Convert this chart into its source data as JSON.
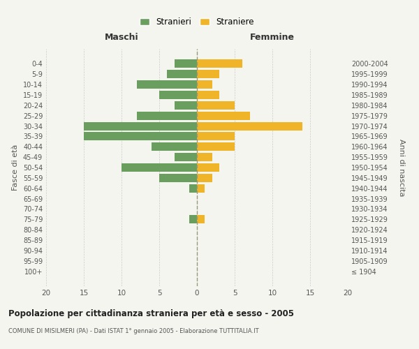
{
  "age_groups": [
    "100+",
    "95-99",
    "90-94",
    "85-89",
    "80-84",
    "75-79",
    "70-74",
    "65-69",
    "60-64",
    "55-59",
    "50-54",
    "45-49",
    "40-44",
    "35-39",
    "30-34",
    "25-29",
    "20-24",
    "15-19",
    "10-14",
    "5-9",
    "0-4"
  ],
  "birth_years": [
    "≤ 1904",
    "1905-1909",
    "1910-1914",
    "1915-1919",
    "1920-1924",
    "1925-1929",
    "1930-1934",
    "1935-1939",
    "1940-1944",
    "1945-1949",
    "1950-1954",
    "1955-1959",
    "1960-1964",
    "1965-1969",
    "1970-1974",
    "1975-1979",
    "1980-1984",
    "1985-1989",
    "1990-1994",
    "1995-1999",
    "2000-2004"
  ],
  "maschi": [
    0,
    0,
    0,
    0,
    0,
    1,
    0,
    0,
    1,
    5,
    10,
    3,
    6,
    15,
    15,
    8,
    3,
    5,
    8,
    4,
    3
  ],
  "femmine": [
    0,
    0,
    0,
    0,
    0,
    1,
    0,
    0,
    1,
    2,
    3,
    2,
    5,
    5,
    14,
    7,
    5,
    3,
    2,
    3,
    6
  ],
  "maschi_color": "#6a9e5e",
  "femmine_color": "#f0b429",
  "background_color": "#f5f5f0",
  "grid_color": "#cccccc",
  "title": "Popolazione per cittadinanza straniera per età e sesso - 2005",
  "subtitle": "COMUNE DI MISILMERI (PA) - Dati ISTAT 1° gennaio 2005 - Elaborazione TUTTITALIA.IT",
  "xlabel_left": "Maschi",
  "xlabel_right": "Femmine",
  "ylabel_left": "Fasce di età",
  "ylabel_right": "Anni di nascita",
  "legend_maschi": "Stranieri",
  "legend_femmine": "Straniere",
  "xlim": 20,
  "bar_height": 0.8
}
